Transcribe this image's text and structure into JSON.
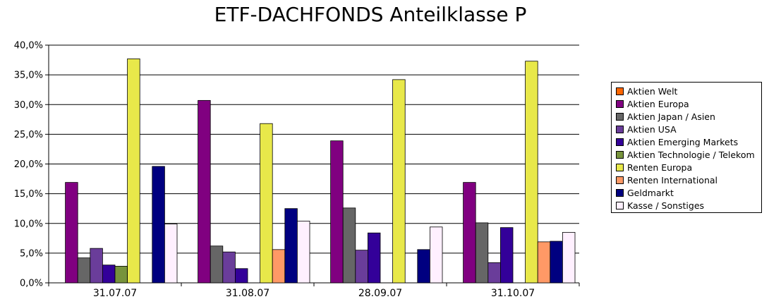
{
  "chart_data": {
    "type": "bar",
    "title": "ETF-DACHFONDS Anteilklasse P",
    "categories": [
      "31.07.07",
      "31.08.07",
      "28.09.07",
      "31.10.07"
    ],
    "ylim": [
      0,
      40
    ],
    "yticks": [
      0,
      5,
      10,
      15,
      20,
      25,
      30,
      35,
      40
    ],
    "ytick_labels": [
      "0,0%",
      "5,0%",
      "10,0%",
      "15,0%",
      "20,0%",
      "25,0%",
      "30,0%",
      "35,0%",
      "40,0%"
    ],
    "grid": true,
    "legend_position": "right",
    "series": [
      {
        "name": "Aktien Welt",
        "color": "#ff6600",
        "values": [
          0,
          0,
          0,
          0
        ]
      },
      {
        "name": "Aktien Europa",
        "color": "#800080",
        "values": [
          16.9,
          30.7,
          23.9,
          16.9
        ]
      },
      {
        "name": "Aktien Japan / Asien",
        "color": "#666666",
        "values": [
          4.2,
          6.2,
          12.6,
          10.1
        ]
      },
      {
        "name": "Aktien USA",
        "color": "#6a3d9a",
        "values": [
          5.8,
          5.2,
          5.5,
          3.4
        ]
      },
      {
        "name": "Aktien Emerging Markets",
        "color": "#330099",
        "values": [
          3.0,
          2.4,
          8.4,
          9.3
        ]
      },
      {
        "name": "Aktien Technologie / Telekom",
        "color": "#77933c",
        "values": [
          2.8,
          0,
          0,
          0
        ]
      },
      {
        "name": "Renten Europa",
        "color": "#e8e84a",
        "values": [
          37.7,
          26.8,
          34.2,
          37.3
        ]
      },
      {
        "name": "Renten International",
        "color": "#ff9966",
        "values": [
          0,
          5.6,
          0,
          6.9
        ]
      },
      {
        "name": "Geldmarkt",
        "color": "#000080",
        "values": [
          19.6,
          12.5,
          5.6,
          7.0
        ]
      },
      {
        "name": "Kasse / Sonstiges",
        "color": "#fff0ff",
        "values": [
          9.9,
          10.4,
          9.4,
          8.5
        ]
      }
    ]
  }
}
